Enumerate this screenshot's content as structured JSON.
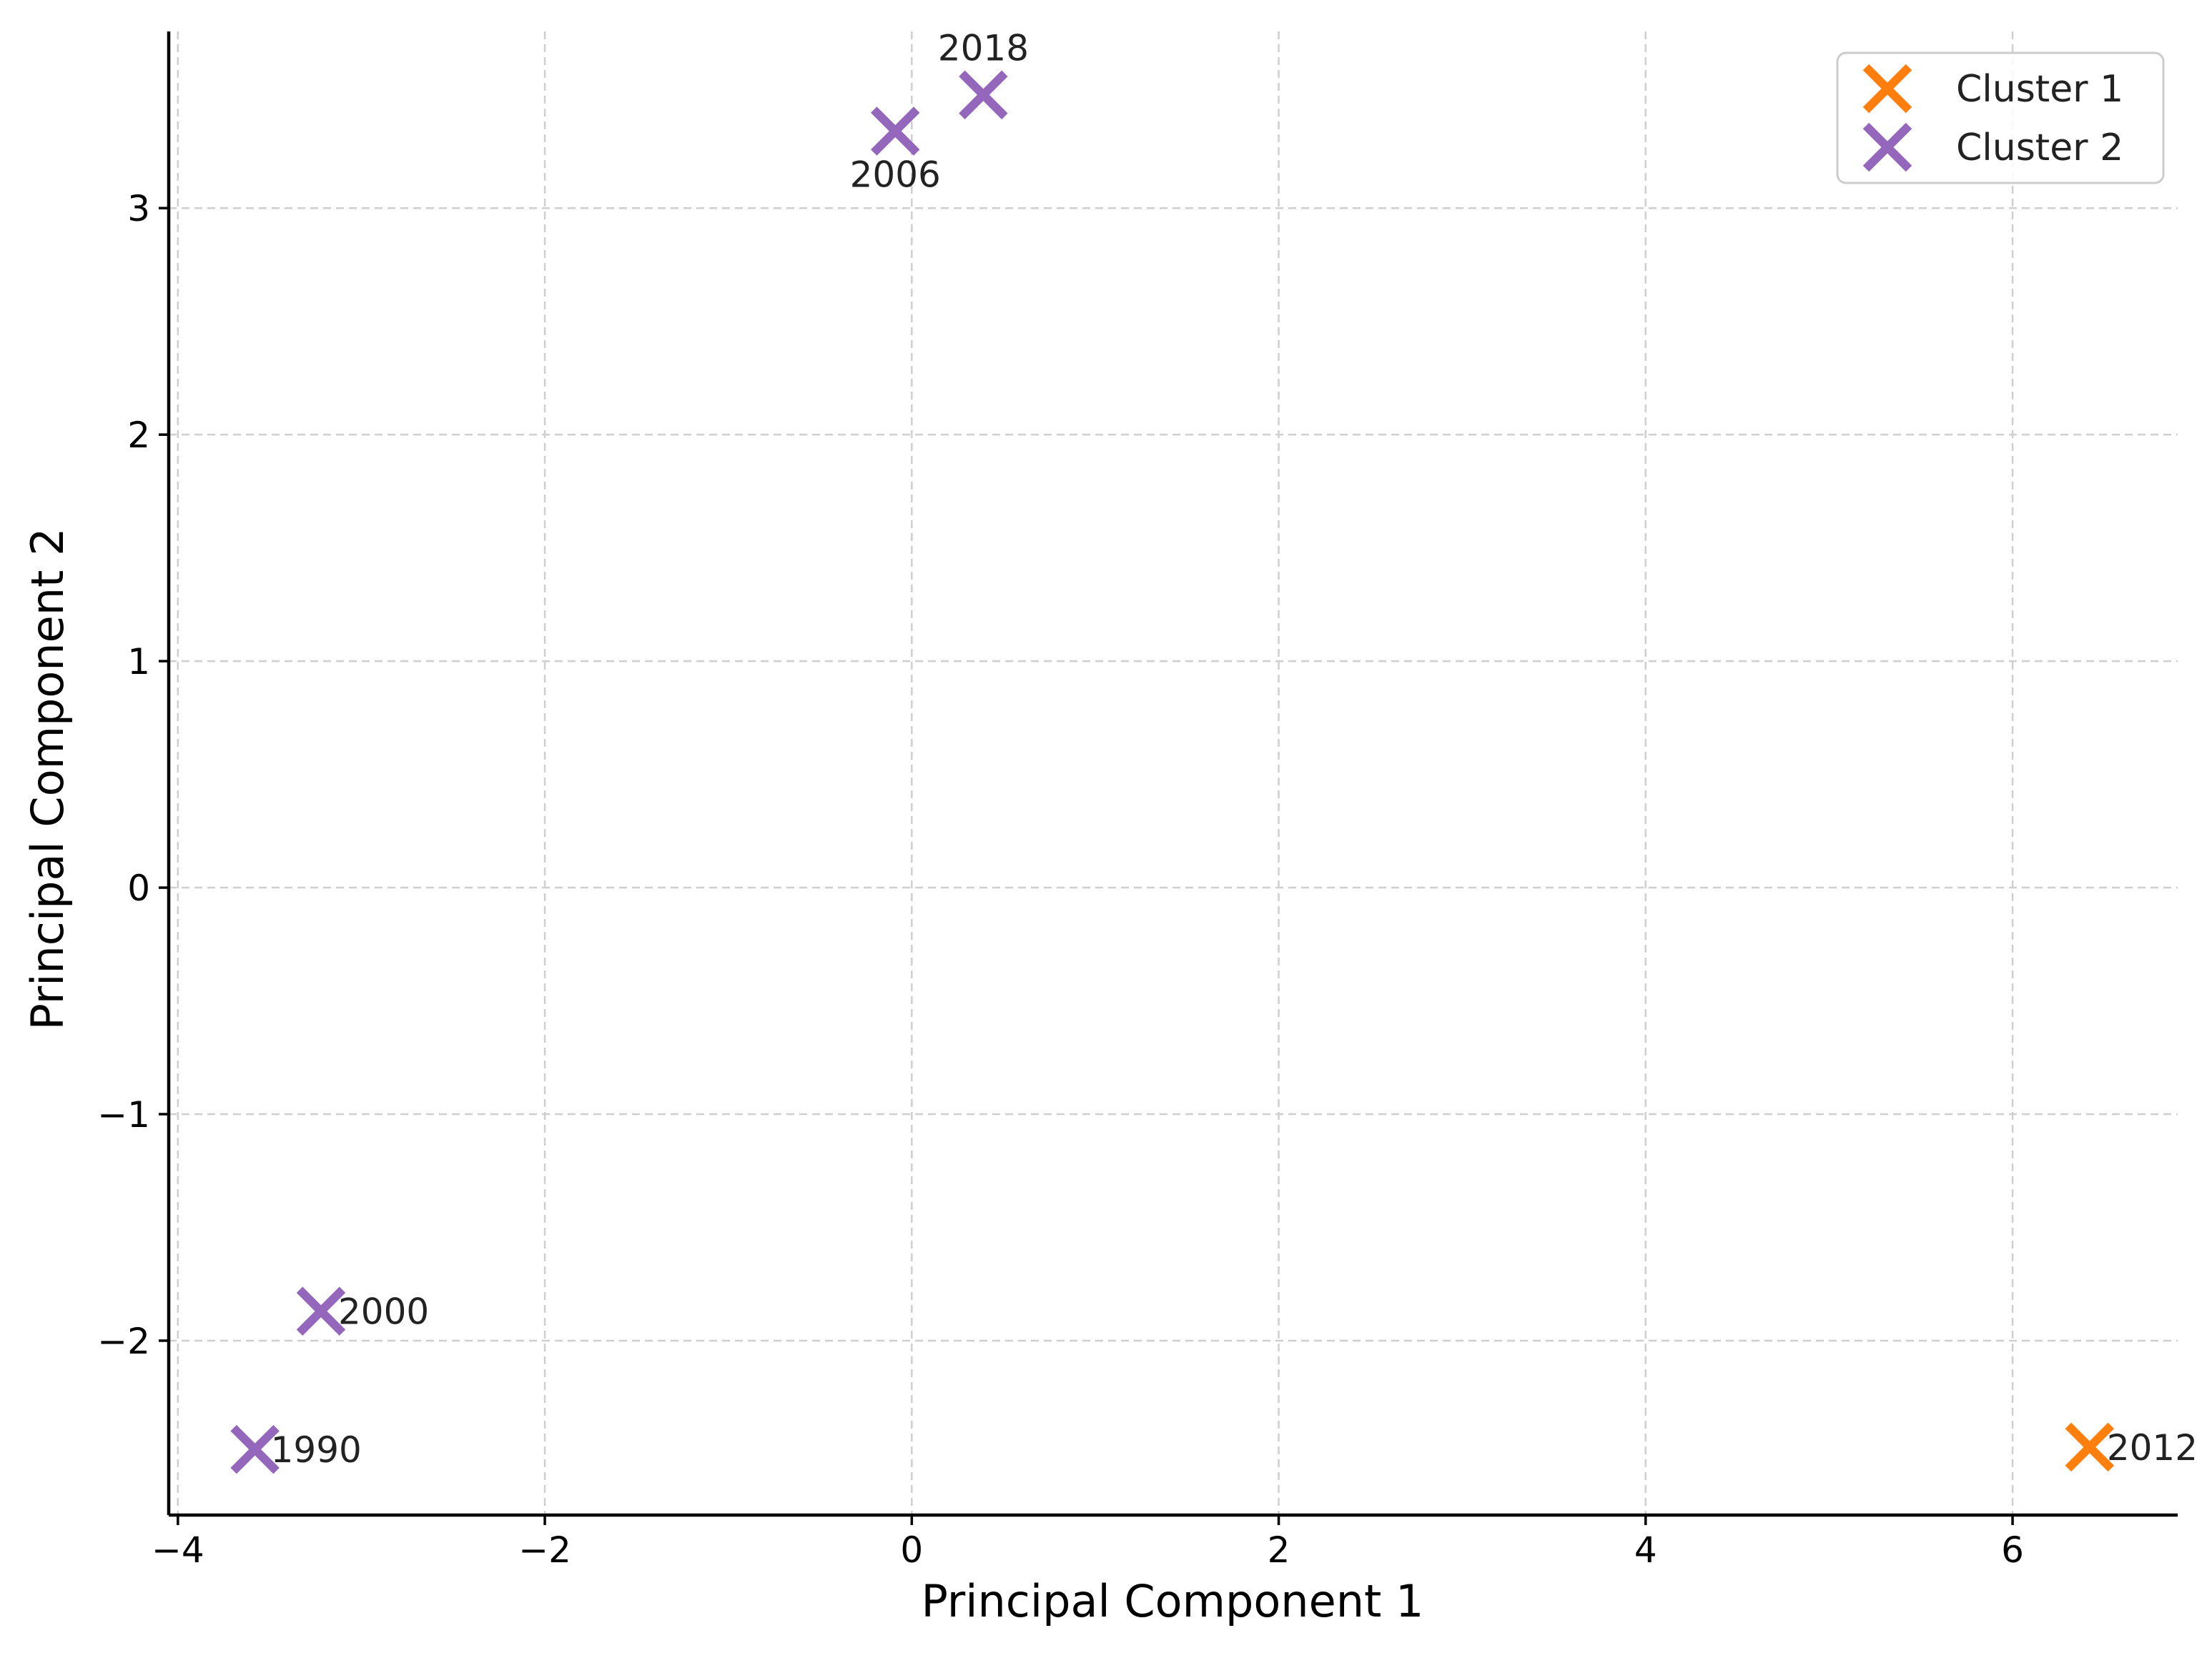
{
  "chart_data": {
    "type": "scatter",
    "title": "",
    "xlabel": "Principal Component 1",
    "ylabel": "Principal Component 2",
    "xlim": [
      -4.05,
      6.9
    ],
    "ylim": [
      -2.77,
      3.78
    ],
    "xticks": [
      -4,
      -2,
      0,
      2,
      4,
      6
    ],
    "xtick_labels": [
      "−4",
      "−2",
      "0",
      "2",
      "4",
      "6"
    ],
    "yticks": [
      -2,
      -1,
      0,
      1,
      2,
      3
    ],
    "ytick_labels": [
      "−2",
      "−1",
      "0",
      "1",
      "2",
      "3"
    ],
    "grid": true,
    "legend_position": "top-right",
    "marker": "x",
    "series": [
      {
        "name": "Cluster 1",
        "color": "#ff7f0e",
        "points": [
          {
            "label": "2012",
            "x": 6.42,
            "y": -2.47
          }
        ]
      },
      {
        "name": "Cluster 2",
        "color": "#9467bd",
        "points": [
          {
            "label": "1990",
            "x": -3.58,
            "y": -2.48
          },
          {
            "label": "2000",
            "x": -3.22,
            "y": -1.87
          },
          {
            "label": "2006",
            "x": -0.09,
            "y": 3.34
          },
          {
            "label": "2018",
            "x": 0.39,
            "y": 3.5
          }
        ]
      }
    ]
  }
}
